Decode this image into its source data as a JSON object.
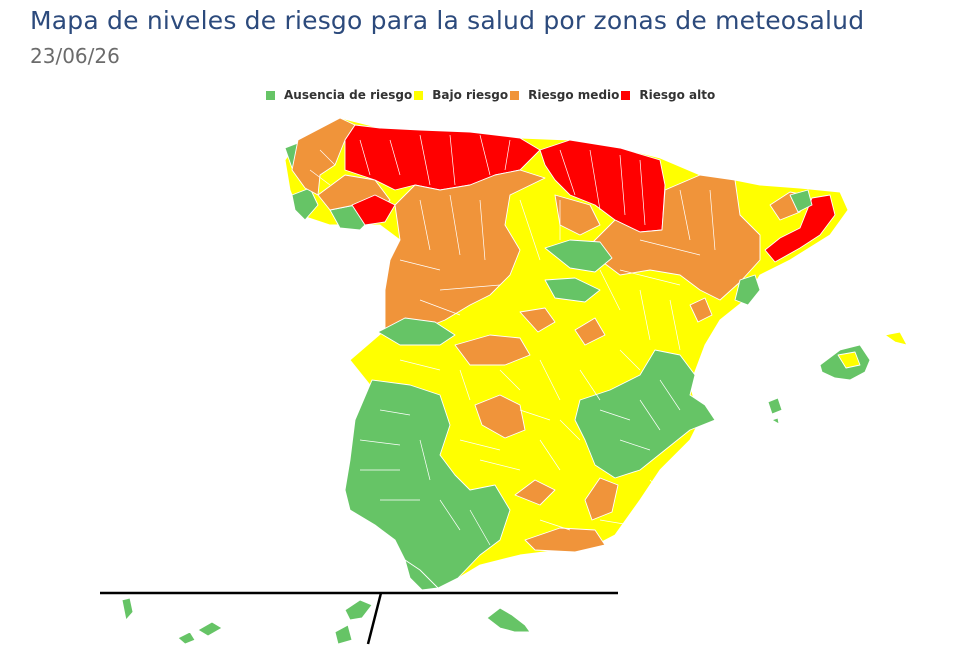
{
  "header": {
    "title": "Mapa de niveles de riesgo para la salud por zonas de meteosalud",
    "date": "23/06/26"
  },
  "legend": [
    {
      "label": "Ausencia de riesgo",
      "color": "#66c466"
    },
    {
      "label": "Bajo riesgo",
      "color": "#ffff00"
    },
    {
      "label": "Riesgo medio",
      "color": "#f0943a"
    },
    {
      "label": "Riesgo alto",
      "color": "#ff0000"
    }
  ],
  "map": {
    "regions": [
      "peninsula",
      "baleares",
      "canarias"
    ],
    "risk_levels_present": [
      "Ausencia de riesgo",
      "Bajo riesgo",
      "Riesgo medio",
      "Riesgo alto"
    ]
  }
}
